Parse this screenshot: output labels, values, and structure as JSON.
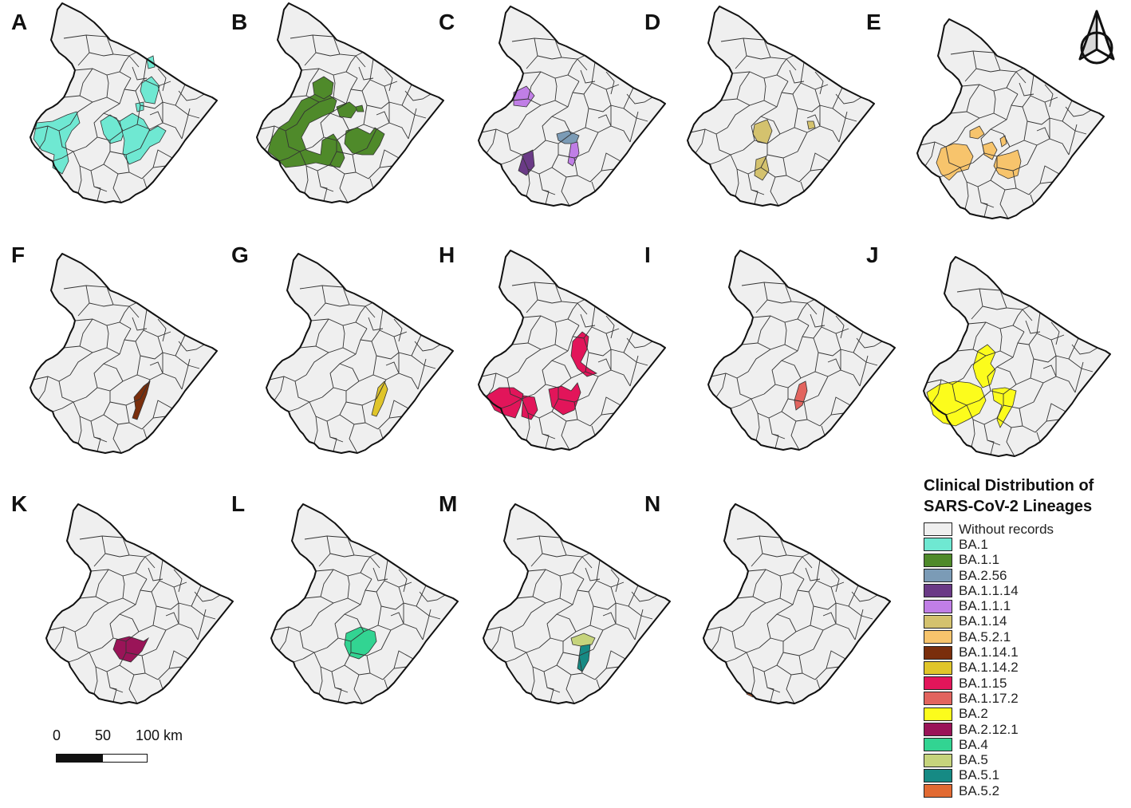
{
  "colors": {
    "base_fill": "#efefef",
    "outline": "#111111",
    "border": "#333333"
  },
  "panels": [
    {
      "letter": "A",
      "lineages": [
        "BA.1"
      ]
    },
    {
      "letter": "B",
      "lineages": [
        "BA.1.1"
      ]
    },
    {
      "letter": "C",
      "lineages": [
        "BA.2.56",
        "BA.1.1.14",
        "BA.1.1.1"
      ]
    },
    {
      "letter": "D",
      "lineages": [
        "BA.1.14"
      ]
    },
    {
      "letter": "E",
      "lineages": [
        "BA.5.2.1"
      ]
    },
    {
      "letter": "F",
      "lineages": [
        "BA.1.14.1"
      ]
    },
    {
      "letter": "G",
      "lineages": [
        "BA.1.14.2"
      ]
    },
    {
      "letter": "H",
      "lineages": [
        "BA.1.15"
      ]
    },
    {
      "letter": "I",
      "lineages": [
        "BA.1.17.2"
      ]
    },
    {
      "letter": "J",
      "lineages": [
        "BA.2"
      ]
    },
    {
      "letter": "K",
      "lineages": [
        "BA.2.12.1"
      ]
    },
    {
      "letter": "L",
      "lineages": [
        "BA.4"
      ]
    },
    {
      "letter": "M",
      "lineages": [
        "BA.5",
        "BA.5.1"
      ]
    },
    {
      "letter": "N",
      "lineages": [
        "BA.5.2"
      ]
    },
    {
      "letter": "",
      "lineages": []
    }
  ],
  "legend": {
    "title_line1": "Clinical Distribution of",
    "title_line2": "SARS-CoV-2 Lineages",
    "items": [
      {
        "label": "Without records",
        "color": "#efefef"
      },
      {
        "label": "BA.1",
        "color": "#6fe8d2"
      },
      {
        "label": "BA.1.1",
        "color": "#4f8a2a"
      },
      {
        "label": "BA.2.56",
        "color": "#7b9bb6"
      },
      {
        "label": "BA.1.1.14",
        "color": "#6a3a86"
      },
      {
        "label": "BA.1.1.1",
        "color": "#c07ee6"
      },
      {
        "label": "BA.1.14",
        "color": "#d4c26e"
      },
      {
        "label": "BA.5.2.1",
        "color": "#f7c46c"
      },
      {
        "label": "BA.1.14.1",
        "color": "#7a2e0c"
      },
      {
        "label": "BA.1.14.2",
        "color": "#e0c52a"
      },
      {
        "label": "BA.1.15",
        "color": "#e2155a"
      },
      {
        "label": "BA.1.17.2",
        "color": "#e2645e"
      },
      {
        "label": "BA.2",
        "color": "#fcfc1c"
      },
      {
        "label": "BA.2.12.1",
        "color": "#9a1458"
      },
      {
        "label": "BA.4",
        "color": "#32d492"
      },
      {
        "label": "BA.5",
        "color": "#c6d47c"
      },
      {
        "label": "BA.5.1",
        "color": "#168a84"
      },
      {
        "label": "BA.5.2",
        "color": "#e26a32"
      }
    ]
  },
  "scale_bar": {
    "labels": [
      "0",
      "50",
      "100 km"
    ]
  },
  "north_arrow": {
    "icon": "north-arrow-icon"
  }
}
